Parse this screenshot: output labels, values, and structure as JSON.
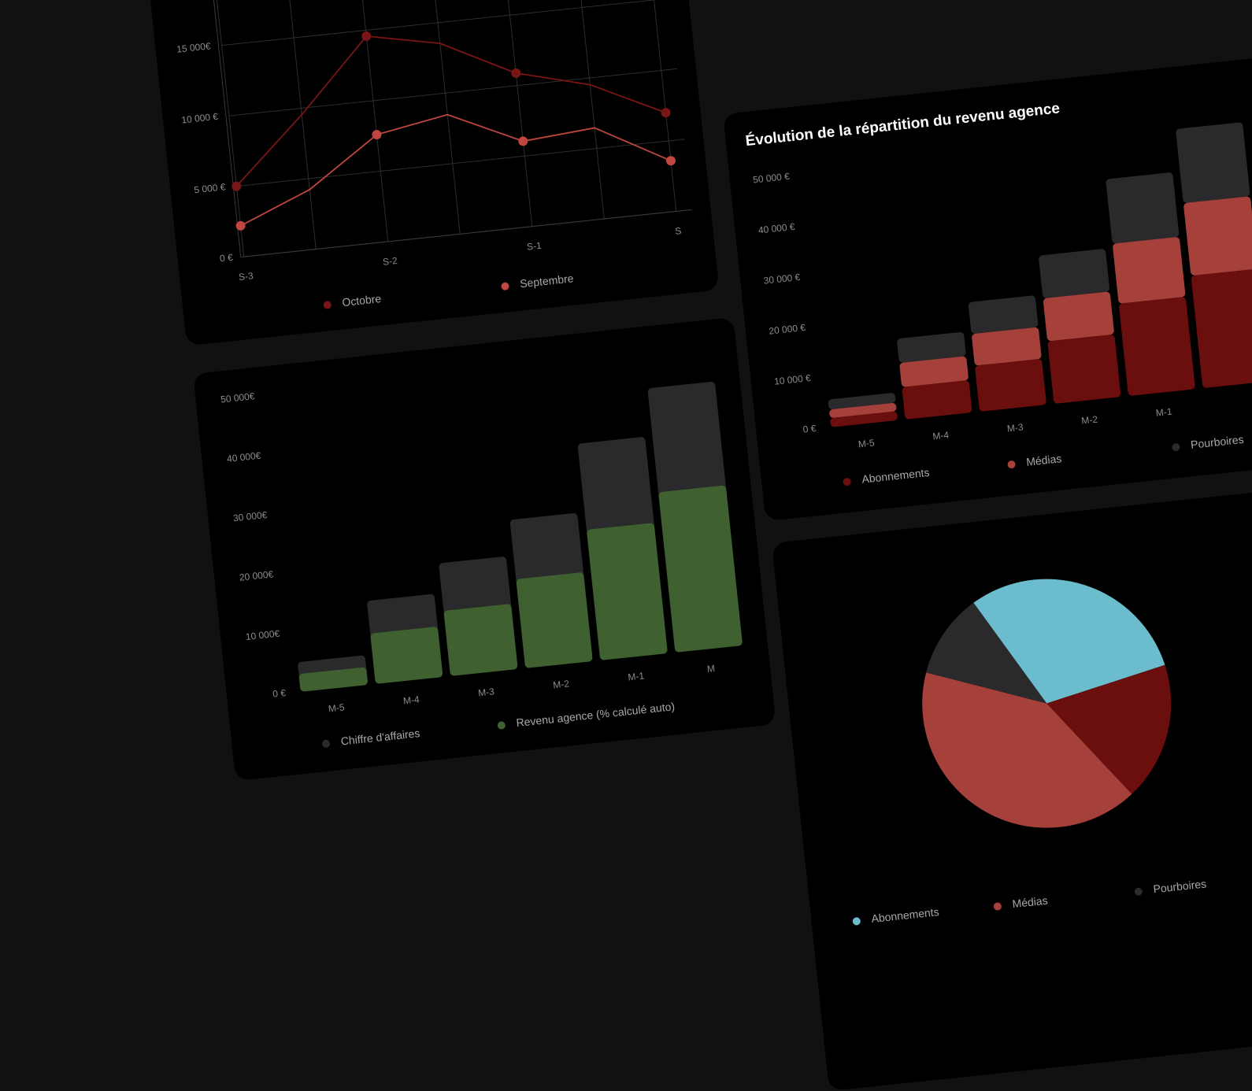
{
  "chart_data": [
    {
      "type": "line",
      "categories": [
        "S-3",
        null,
        "S-2",
        null,
        "S-1",
        null,
        "S"
      ],
      "series": [
        {
          "name": "Octobre",
          "color": "#7a1515",
          "values": [
            5000,
            9550,
            14580,
            13530,
            10880,
            9520,
            7000
          ]
        },
        {
          "name": "Septembre",
          "color": "#c0463f",
          "values": [
            2200,
            4230,
            7590,
            8470,
            6050,
            6460,
            3590
          ]
        }
      ],
      "ylim": [
        0,
        17500
      ],
      "yticks": [
        {
          "value": 0,
          "label": "0 €"
        },
        {
          "value": 5000,
          "label": "5 000 €"
        },
        {
          "value": 10000,
          "label": "10 000 €"
        },
        {
          "value": 15000,
          "label": "15 000€"
        }
      ],
      "grid": true
    },
    {
      "type": "bar",
      "stacked": false,
      "categories": [
        "M-5",
        "M-4",
        "M-3",
        "M-2",
        "M-1",
        "M"
      ],
      "series": [
        {
          "name": "Chiffre d'affaires",
          "color": "#2a2a2c",
          "values": [
            5000,
            14000,
            19000,
            25000,
            36500,
            44500
          ]
        },
        {
          "name": "Revenu agence (% calculé auto)",
          "color": "#3f6130",
          "values": [
            3000,
            8500,
            11000,
            15000,
            22000,
            27000
          ]
        }
      ],
      "ylim": [
        0,
        50000
      ],
      "yticks": [
        {
          "value": 0,
          "label": "0 €"
        },
        {
          "value": 10000,
          "label": "10 000€"
        },
        {
          "value": 20000,
          "label": "20 000€"
        },
        {
          "value": 30000,
          "label": "30 000€"
        },
        {
          "value": 40000,
          "label": "40 000€"
        },
        {
          "value": 50000,
          "label": "50 000€"
        }
      ],
      "grid": false
    },
    {
      "type": "bar",
      "stacked": true,
      "title": "Évolution de la répartition du revenu agence",
      "categories": [
        "M-5",
        "M-4",
        "M-3",
        "M-2",
        "M-1",
        null
      ],
      "series": [
        {
          "name": "Abonnements",
          "color": "#6b0e0e",
          "values": [
            1800,
            6400,
            9100,
            12400,
            18300,
            22300
          ]
        },
        {
          "name": "Médias",
          "color": "#a6403a",
          "values": [
            1700,
            4800,
            6300,
            8500,
            11900,
            14400
          ]
        },
        {
          "name": "Pourboires",
          "color": "#2a2a2c",
          "values": [
            2000,
            4800,
            6300,
            8500,
            12800,
            14700
          ]
        }
      ],
      "ylim": [
        0,
        50000
      ],
      "yticks": [
        {
          "value": 0,
          "label": "0 €"
        },
        {
          "value": 10000,
          "label": "10 000 €"
        },
        {
          "value": 20000,
          "label": "20 000 €"
        },
        {
          "value": 30000,
          "label": "30 000 €"
        },
        {
          "value": 40000,
          "label": "40 000 €"
        },
        {
          "value": 50000,
          "label": "50 000 €"
        }
      ],
      "grid": false
    },
    {
      "type": "pie",
      "categories": [
        "Abonnements",
        null,
        "Médias",
        "Pourboires"
      ],
      "values": [
        30,
        18,
        41,
        11
      ],
      "colors": [
        "#6bbccd",
        "#6b0e0e",
        "#a6403a",
        "#2a2a2c"
      ],
      "legend_order": [
        0,
        2,
        3,
        1
      ]
    }
  ]
}
